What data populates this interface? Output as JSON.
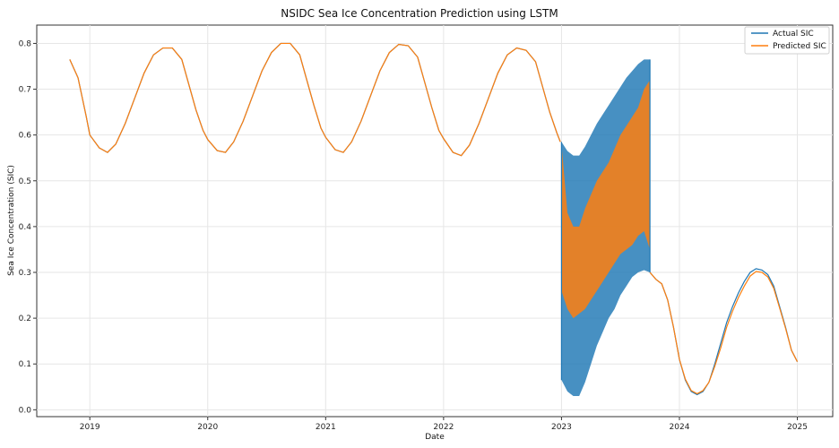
{
  "chart_data": {
    "type": "line",
    "title": "NSIDC Sea Ice Concentration Prediction using LSTM",
    "xlabel": "Date",
    "ylabel": "Sea Ice Concentration (SIC)",
    "xlim": [
      2018.55,
      2025.3
    ],
    "ylim": [
      -0.015,
      0.84
    ],
    "grid": true,
    "legend_position": "top-right",
    "x_ticks": [
      2019,
      2020,
      2021,
      2022,
      2023,
      2024,
      2025
    ],
    "x_tick_labels": [
      "2019",
      "2020",
      "2021",
      "2022",
      "2023",
      "2024",
      "2025"
    ],
    "y_ticks": [
      0.0,
      0.1,
      0.2,
      0.3,
      0.4,
      0.5,
      0.6,
      0.7,
      0.8
    ],
    "y_tick_labels": [
      "0.0",
      "0.1",
      "0.2",
      "0.3",
      "0.4",
      "0.5",
      "0.6",
      "0.7",
      "0.8"
    ],
    "series": [
      {
        "name": "Actual SIC",
        "color": "#1f77b4",
        "smooth": {
          "x": [
            2018.83,
            2018.9,
            2018.97,
            2019.0,
            2019.08,
            2019.15,
            2019.22,
            2019.3,
            2019.38,
            2019.46,
            2019.54,
            2019.62,
            2019.7,
            2019.78,
            2019.84,
            2019.9,
            2019.96,
            2020.0,
            2020.08,
            2020.15,
            2020.22,
            2020.3,
            2020.38,
            2020.46,
            2020.54,
            2020.62,
            2020.7,
            2020.78,
            2020.84,
            2020.9,
            2020.96,
            2021.0,
            2021.08,
            2021.15,
            2021.22,
            2021.3,
            2021.38,
            2021.46,
            2021.54,
            2021.62,
            2021.7,
            2021.78,
            2021.84,
            2021.9,
            2021.96,
            2022.0,
            2022.08,
            2022.15,
            2022.22,
            2022.3,
            2022.38,
            2022.46,
            2022.54,
            2022.62,
            2022.7,
            2022.78,
            2022.84,
            2022.9,
            2022.96,
            2022.99
          ],
          "y": [
            0.765,
            0.725,
            0.64,
            0.6,
            0.572,
            0.562,
            0.58,
            0.625,
            0.68,
            0.735,
            0.775,
            0.79,
            0.79,
            0.765,
            0.71,
            0.655,
            0.61,
            0.59,
            0.566,
            0.562,
            0.585,
            0.63,
            0.685,
            0.74,
            0.78,
            0.8,
            0.8,
            0.775,
            0.72,
            0.665,
            0.615,
            0.595,
            0.568,
            0.562,
            0.585,
            0.63,
            0.685,
            0.74,
            0.78,
            0.798,
            0.795,
            0.77,
            0.715,
            0.66,
            0.61,
            0.592,
            0.562,
            0.555,
            0.578,
            0.625,
            0.68,
            0.735,
            0.775,
            0.79,
            0.785,
            0.76,
            0.705,
            0.65,
            0.605,
            0.585
          ]
        },
        "noisy_band": {
          "x": [
            2023.0,
            2023.05,
            2023.1,
            2023.15,
            2023.2,
            2023.25,
            2023.3,
            2023.35,
            2023.4,
            2023.45,
            2023.5,
            2023.55,
            2023.6,
            2023.65,
            2023.7,
            2023.75
          ],
          "upper": [
            0.585,
            0.565,
            0.555,
            0.555,
            0.575,
            0.6,
            0.625,
            0.645,
            0.665,
            0.685,
            0.705,
            0.725,
            0.74,
            0.755,
            0.765,
            0.765
          ],
          "lower": [
            0.065,
            0.04,
            0.03,
            0.03,
            0.06,
            0.1,
            0.14,
            0.17,
            0.2,
            0.22,
            0.25,
            0.27,
            0.29,
            0.3,
            0.305,
            0.3
          ]
        },
        "post": {
          "x": [
            2023.75,
            2023.8,
            2023.85,
            2023.9,
            2023.95,
            2024.0,
            2024.05,
            2024.1,
            2024.15,
            2024.2,
            2024.25,
            2024.3,
            2024.35,
            2024.4,
            2024.45,
            2024.5,
            2024.55,
            2024.6,
            2024.65,
            2024.7,
            2024.75,
            2024.8,
            2024.85,
            2024.9,
            2024.95,
            2025.0
          ],
          "y": [
            0.3,
            0.285,
            0.275,
            0.24,
            0.18,
            0.11,
            0.065,
            0.04,
            0.033,
            0.04,
            0.06,
            0.1,
            0.145,
            0.19,
            0.225,
            0.255,
            0.28,
            0.3,
            0.308,
            0.305,
            0.295,
            0.27,
            0.225,
            0.18,
            0.13,
            0.105
          ]
        }
      },
      {
        "name": "Predicted SIC",
        "color": "#ff7f0e",
        "smooth_same_as_actual_until": 2022.99,
        "noisy_band": {
          "x": [
            2023.0,
            2023.05,
            2023.1,
            2023.15,
            2023.2,
            2023.25,
            2023.3,
            2023.35,
            2023.4,
            2023.45,
            2023.5,
            2023.55,
            2023.6,
            2023.65,
            2023.7,
            2023.75
          ],
          "upper": [
            0.58,
            0.43,
            0.4,
            0.4,
            0.44,
            0.47,
            0.5,
            0.52,
            0.54,
            0.57,
            0.6,
            0.62,
            0.64,
            0.66,
            0.7,
            0.72
          ],
          "lower": [
            0.26,
            0.22,
            0.2,
            0.21,
            0.22,
            0.24,
            0.26,
            0.28,
            0.3,
            0.32,
            0.34,
            0.35,
            0.36,
            0.38,
            0.39,
            0.35
          ]
        },
        "post": {
          "x": [
            2023.75,
            2023.8,
            2023.85,
            2023.9,
            2023.95,
            2024.0,
            2024.05,
            2024.1,
            2024.15,
            2024.2,
            2024.25,
            2024.3,
            2024.35,
            2024.4,
            2024.45,
            2024.5,
            2024.55,
            2024.6,
            2024.65,
            2024.7,
            2024.75,
            2024.8,
            2024.85,
            2024.9,
            2024.95,
            2025.0
          ],
          "y": [
            0.3,
            0.285,
            0.275,
            0.24,
            0.18,
            0.11,
            0.067,
            0.042,
            0.035,
            0.042,
            0.06,
            0.095,
            0.135,
            0.18,
            0.215,
            0.245,
            0.27,
            0.292,
            0.302,
            0.3,
            0.29,
            0.265,
            0.222,
            0.178,
            0.13,
            0.105
          ]
        }
      }
    ]
  }
}
